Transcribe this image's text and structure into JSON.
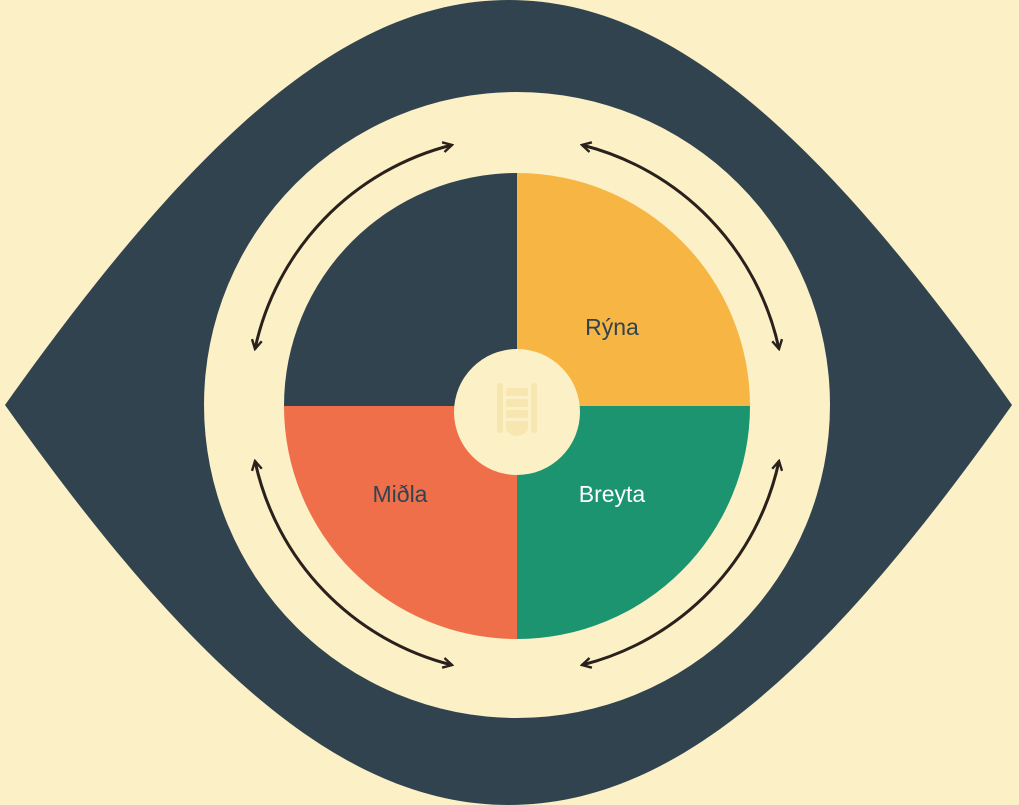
{
  "nodes": [
    {
      "label": "Rýna"
    },
    {
      "label": "Breyta"
    },
    {
      "label": "Miðla"
    }
  ]
}
